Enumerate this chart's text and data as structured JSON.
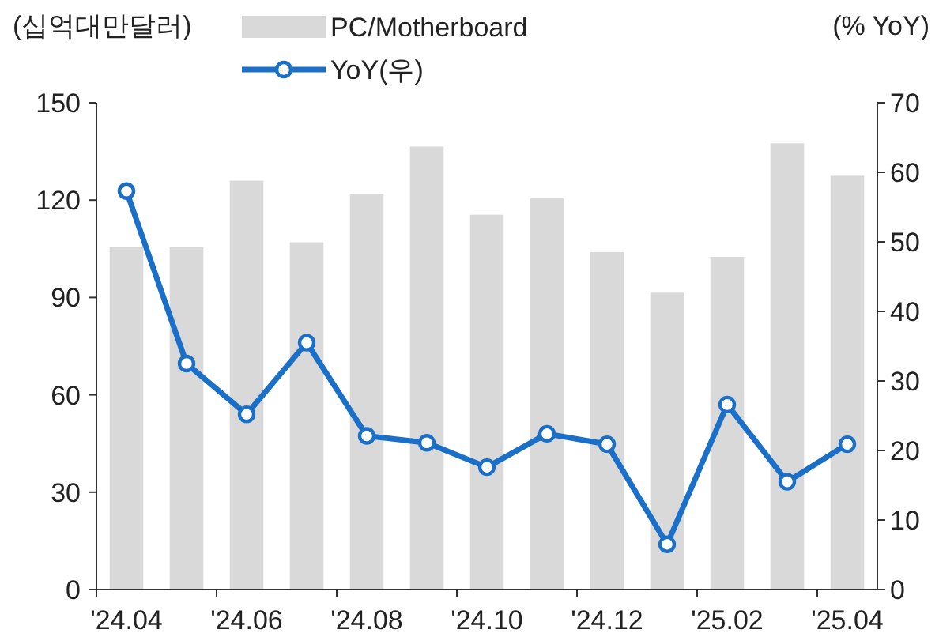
{
  "chart_data": {
    "type": "bar",
    "categories": [
      "'24.04",
      null,
      "'24.06",
      null,
      "'24.08",
      null,
      "'24.10",
      null,
      "'24.12",
      null,
      "'25.02",
      null,
      "'25.04"
    ],
    "series": [
      {
        "name": "PC/Motherboard",
        "color": "#d9d9d9",
        "values": [
          105.5,
          105.5,
          126,
          107,
          122,
          136.5,
          115.5,
          120.5,
          104,
          91.5,
          102.5,
          137.5,
          127.5
        ]
      },
      {
        "name": "YoY(우)",
        "type": "line",
        "axis": "y2",
        "color": "#1a6fc8",
        "marker": "circle",
        "values": [
          57.3,
          32.5,
          25.2,
          35.5,
          22.1,
          21.1,
          17.6,
          22.4,
          20.9,
          6.5,
          26.6,
          15.5,
          20.9
        ]
      }
    ],
    "ylabel": "(십억대만달러)",
    "y2label": "(% YoY)",
    "ylim": [
      0,
      150
    ],
    "yticks": [
      0,
      30,
      60,
      90,
      120,
      150
    ],
    "y2lim": [
      0,
      70
    ],
    "y2ticks": [
      0,
      10,
      20,
      30,
      40,
      50,
      60,
      70
    ],
    "legend": "top",
    "grid": false
  }
}
